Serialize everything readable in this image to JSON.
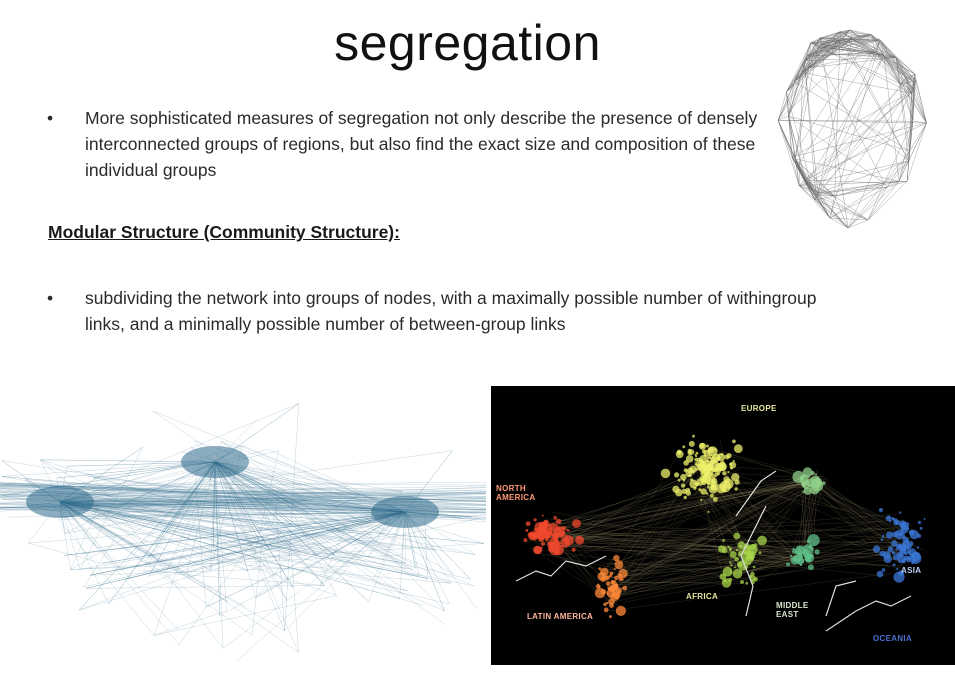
{
  "slide": {
    "title": "segregation",
    "bullet1": "More sophisticated measures of segregation not only describe the presence of densely interconnected groups of regions, but also find the exact size and composition of these individual groups",
    "heading": "Modular Structure (Community Structure):",
    "bullet2": "subdividing the network into groups of nodes, with a maximally possible number of withingroup links, and a minimally possible number of between-group links",
    "bullet_symbol": "•"
  },
  "figures": {
    "brain_network": {
      "edge_color": "#6e6e6e"
    },
    "air_network": {
      "edge_color": "#2f6b8c"
    },
    "world_map": {
      "background": "#000000",
      "regions": {
        "europe": "EUROPE",
        "north_america": "NORTH AMERICA",
        "latin_america": "LATIN AMERICA",
        "africa": "AFRICA",
        "middle_east": "MIDDLE EAST",
        "asia": "ASIA",
        "oceania": "OCEANIA"
      }
    }
  }
}
